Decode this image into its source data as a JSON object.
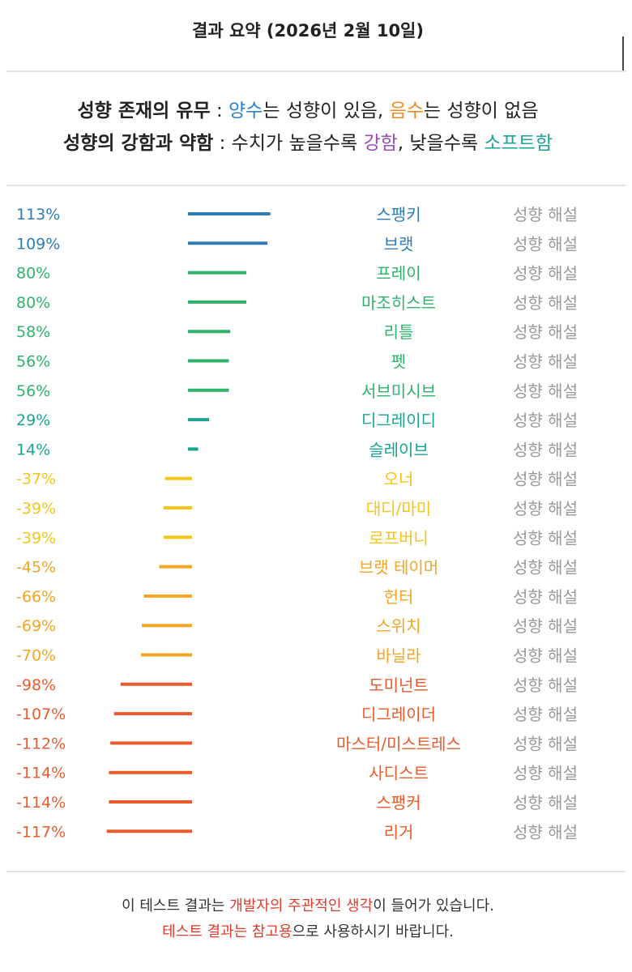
{
  "header": {
    "title": "결과 요약 (2026년 2월 10일)"
  },
  "legend": {
    "line1": {
      "label": "성향 존재의 유무",
      "sep": " : ",
      "pos_word": "양수",
      "pos_rest": "는 성향이 있음, ",
      "neg_word": "음수",
      "neg_rest": "는 성향이 없음"
    },
    "line2": {
      "label": "성향의 강함과 약함",
      "sep": " : 수치가 높을수록 ",
      "strong_word": "강함",
      "mid": ", 낮을수록 ",
      "soft_word": "소프트함"
    },
    "colors": {
      "positive": "#2b82c9",
      "negative": "#f08a22",
      "strong": "#9b4db6",
      "soft": "#1aa393"
    }
  },
  "chart_data": {
    "type": "bar",
    "orientation": "horizontal",
    "unit": "%",
    "zero_reference": 0,
    "categories": [
      "스팽키",
      "브랫",
      "프레이",
      "마조히스트",
      "리틀",
      "펫",
      "서브미시브",
      "디그레이디",
      "슬레이브",
      "오너",
      "대디/마미",
      "로프버니",
      "브랫 테이머",
      "헌터",
      "스위치",
      "바닐라",
      "도미넌트",
      "디그레이더",
      "마스터/미스트레스",
      "사디스트",
      "스팽커",
      "리거"
    ],
    "values": [
      113,
      109,
      80,
      80,
      58,
      56,
      56,
      29,
      14,
      -37,
      -39,
      -39,
      -45,
      -66,
      -69,
      -70,
      -98,
      -107,
      -112,
      -114,
      -114,
      -117
    ],
    "value_labels": [
      "113%",
      "109%",
      "80%",
      "80%",
      "58%",
      "56%",
      "56%",
      "29%",
      "14%",
      "-37%",
      "-39%",
      "-39%",
      "-45%",
      "-66%",
      "-69%",
      "-70%",
      "-98%",
      "-107%",
      "-112%",
      "-114%",
      "-114%",
      "-117%"
    ],
    "colors": [
      "#2e7db5",
      "#2e7db5",
      "#2fb36a",
      "#2fb36a",
      "#2fb36a",
      "#2fb36a",
      "#2fb36a",
      "#1aa393",
      "#1aa393",
      "#f5c518",
      "#f5c518",
      "#f5c518",
      "#f2a623",
      "#f2a623",
      "#f2a623",
      "#f2a623",
      "#ea5b2b",
      "#ea5b2b",
      "#ea5b2b",
      "#ea5b2b",
      "#ea5b2b",
      "#ea5b2b"
    ],
    "link_label": "성향 해설",
    "link_color": "#999999"
  },
  "footer": {
    "line1": {
      "a": "이 테스트 결과는 ",
      "b": "개발자의 주관적인 생각",
      "c": "이 들어가 있습니다."
    },
    "line2": {
      "a": "테스트 결과는 참고용",
      "b": "으로 사용하시기 바랍니다."
    },
    "highlight_color": "#e03a2a"
  }
}
